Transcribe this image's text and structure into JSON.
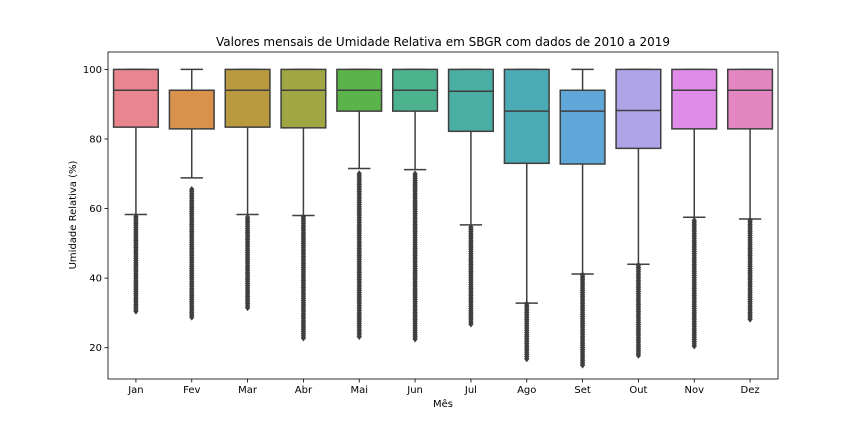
{
  "chart_data": {
    "type": "box",
    "title": "Valores mensais de Umidade Relativa em SBGR com dados de 2010 a 2019",
    "xlabel": "Mês",
    "ylabel": "Umidade Relativa (%)",
    "ylim": [
      11,
      105
    ],
    "yticks": [
      20,
      40,
      60,
      80,
      100
    ],
    "grid": false,
    "categories": [
      "Jan",
      "Fev",
      "Mar",
      "Abr",
      "Mai",
      "Jun",
      "Jul",
      "Ago",
      "Set",
      "Out",
      "Nov",
      "Dez"
    ],
    "boxes": [
      {
        "label": "Jan",
        "color": "#e8858f",
        "whisker_low": 58.3,
        "q1": 83.4,
        "median": 94.0,
        "q3": 100,
        "whisker_high": 100,
        "outliers_min": 30.5,
        "outliers_max": 58
      },
      {
        "label": "Fev",
        "color": "#d8924b",
        "whisker_low": 68.8,
        "q1": 82.9,
        "median": 94.0,
        "q3": 94.0,
        "whisker_high": 100,
        "outliers_min": 28.8,
        "outliers_max": 66
      },
      {
        "label": "Mar",
        "color": "#b99a3f",
        "whisker_low": 58.3,
        "q1": 83.4,
        "median": 94.0,
        "q3": 100,
        "whisker_high": 100,
        "outliers_min": 31.5,
        "outliers_max": 58
      },
      {
        "label": "Abr",
        "color": "#a0a642",
        "whisker_low": 58.0,
        "q1": 83.2,
        "median": 94.0,
        "q3": 100,
        "whisker_high": 100,
        "outliers_min": 22.8,
        "outliers_max": 58
      },
      {
        "label": "Mai",
        "color": "#5bb44a",
        "whisker_low": 71.5,
        "q1": 88.0,
        "median": 94.0,
        "q3": 100,
        "whisker_high": 100,
        "outliers_min": 23.2,
        "outliers_max": 70
      },
      {
        "label": "Jun",
        "color": "#4db38e",
        "whisker_low": 71.2,
        "q1": 88.0,
        "median": 94.0,
        "q3": 100,
        "whisker_high": 100,
        "outliers_min": 22.5,
        "outliers_max": 70
      },
      {
        "label": "Jul",
        "color": "#4baea4",
        "whisker_low": 55.3,
        "q1": 82.2,
        "median": 93.7,
        "q3": 100,
        "whisker_high": 100,
        "outliers_min": 26.8,
        "outliers_max": 55
      },
      {
        "label": "Ago",
        "color": "#4aabb5",
        "whisker_low": 32.8,
        "q1": 73.0,
        "median": 88.0,
        "q3": 100,
        "whisker_high": 100,
        "outliers_min": 16.8,
        "outliers_max": 33
      },
      {
        "label": "Set",
        "color": "#5fa7d8",
        "whisker_low": 41.2,
        "q1": 72.8,
        "median": 88.0,
        "q3": 94.0,
        "whisker_high": 100,
        "outliers_min": 15.0,
        "outliers_max": 41
      },
      {
        "label": "Out",
        "color": "#b0a4e8",
        "whisker_low": 44.0,
        "q1": 77.3,
        "median": 88.2,
        "q3": 100,
        "whisker_high": 100,
        "outliers_min": 17.8,
        "outliers_max": 44
      },
      {
        "label": "Nov",
        "color": "#de8ce8",
        "whisker_low": 57.5,
        "q1": 82.9,
        "median": 94.0,
        "q3": 100,
        "whisker_high": 100,
        "outliers_min": 20.5,
        "outliers_max": 57
      },
      {
        "label": "Dez",
        "color": "#e486c1",
        "whisker_low": 57.0,
        "q1": 82.9,
        "median": 94.0,
        "q3": 100,
        "whisker_high": 100,
        "outliers_min": 28.2,
        "outliers_max": 57
      }
    ]
  }
}
